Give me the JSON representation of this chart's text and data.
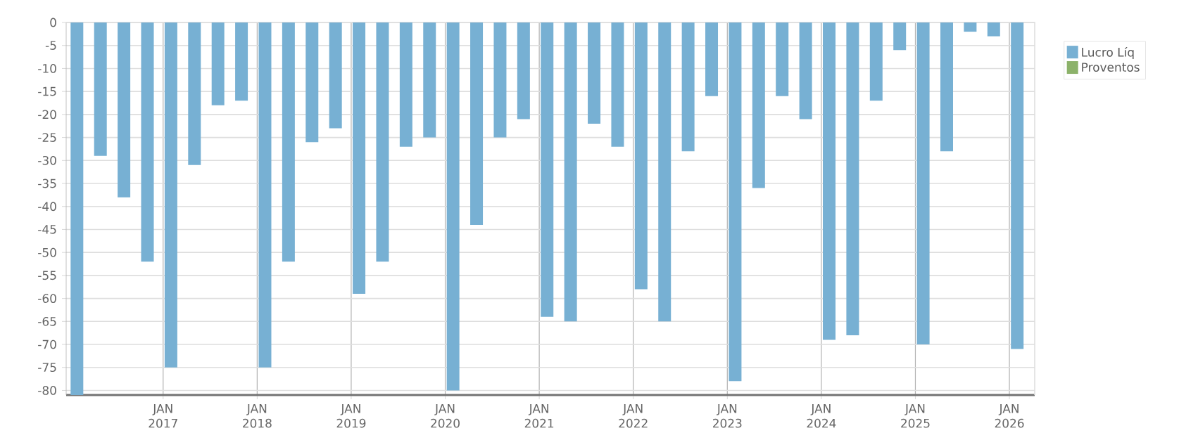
{
  "chart_data": {
    "type": "bar",
    "x": [
      "2016-02",
      "2016-05",
      "2016-08",
      "2016-11",
      "2017-02",
      "2017-05",
      "2017-08",
      "2017-11",
      "2018-02",
      "2018-05",
      "2018-08",
      "2018-11",
      "2019-02",
      "2019-05",
      "2019-08",
      "2019-11",
      "2020-02",
      "2020-05",
      "2020-08",
      "2020-11",
      "2021-02",
      "2021-05",
      "2021-08",
      "2021-11",
      "2022-02",
      "2022-05",
      "2022-08",
      "2022-11",
      "2023-02",
      "2023-05",
      "2023-08",
      "2023-11",
      "2024-02",
      "2024-05",
      "2024-08",
      "2024-11",
      "2025-02",
      "2025-05",
      "2025-08",
      "2025-11",
      "2026-02"
    ],
    "series": [
      {
        "name": "Lucro Líq",
        "color": "#77b0d3",
        "values": [
          -81,
          -29,
          -38,
          -52,
          -75,
          -31,
          -18,
          -17,
          -75,
          -52,
          -26,
          -23,
          -59,
          -52,
          -27,
          -25,
          -80,
          -44,
          -25,
          -21,
          -64,
          -65,
          -22,
          -27,
          -58,
          -65,
          -28,
          -16,
          -78,
          -36,
          -16,
          -21,
          -69,
          -68,
          -17,
          -6,
          -70,
          -28,
          -2,
          -3,
          -71
        ]
      },
      {
        "name": "Proventos",
        "color": "#8cb26a",
        "values": [
          null,
          null,
          null,
          null,
          null,
          null,
          null,
          null,
          null,
          null,
          null,
          null,
          null,
          null,
          null,
          null,
          null,
          null,
          null,
          null,
          null,
          null,
          null,
          null,
          null,
          null,
          null,
          null,
          null,
          null,
          null,
          null,
          null,
          null,
          null,
          null,
          null,
          null,
          null,
          null,
          null
        ]
      }
    ],
    "xlim": [
      "2015-12-20",
      "2026-04-08"
    ],
    "xticks": [
      {
        "value": "2017-01",
        "label": "JAN 2017"
      },
      {
        "value": "2018-01",
        "label": "JAN 2018"
      },
      {
        "value": "2019-01",
        "label": "JAN 2019"
      },
      {
        "value": "2020-01",
        "label": "JAN 2020"
      },
      {
        "value": "2021-01",
        "label": "JAN 2021"
      },
      {
        "value": "2022-01",
        "label": "JAN 2022"
      },
      {
        "value": "2023-01",
        "label": "JAN 2023"
      },
      {
        "value": "2024-01",
        "label": "JAN 2024"
      },
      {
        "value": "2025-01",
        "label": "JAN 2025"
      },
      {
        "value": "2026-01",
        "label": "JAN 2026"
      }
    ],
    "ylim": [
      -81,
      0
    ],
    "yticks": [
      -80,
      -75,
      -70,
      -65,
      -60,
      -55,
      -50,
      -45,
      -40,
      -35,
      -30,
      -25,
      -20,
      -15,
      -10,
      -5,
      0
    ],
    "grid": true,
    "legend": "top right"
  }
}
